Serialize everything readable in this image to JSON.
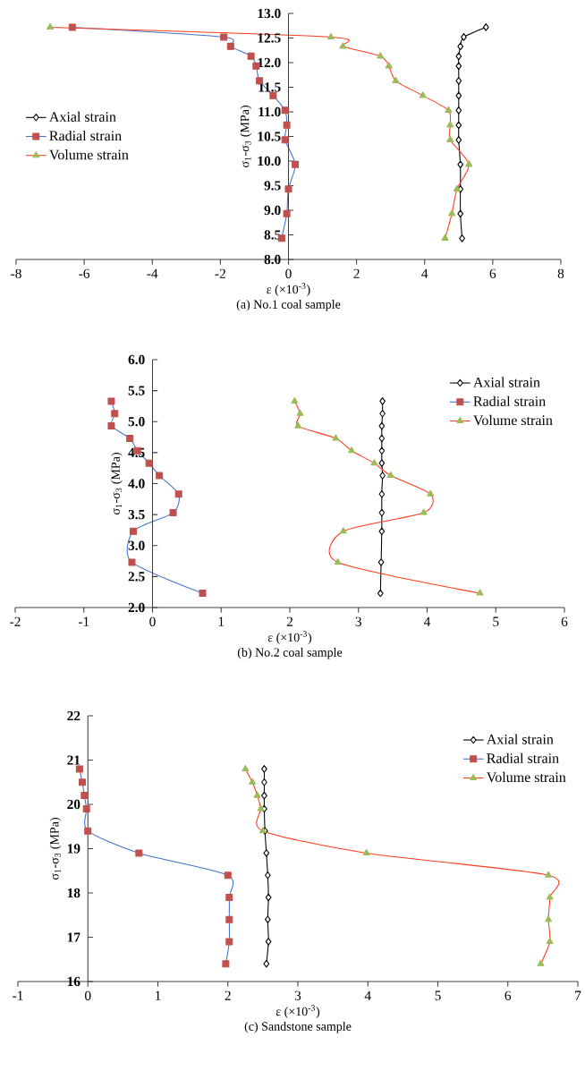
{
  "chart_data": [
    {
      "type": "line",
      "title": "(a)  No.1  coal  sample",
      "xlabel": "ε (×10$^{-3}$)",
      "ylabel": "σ$_{1}$-σ$_{3}$ (MPa)",
      "xlim": [
        -8,
        8
      ],
      "xticks": [
        -8,
        -6,
        -4,
        -2,
        0,
        2,
        4,
        6,
        8
      ],
      "ylim": [
        8,
        13
      ],
      "yticks": [
        {
          "value": 8,
          "label": "8.0"
        },
        {
          "value": 8.5,
          "label": "8.5"
        },
        {
          "value": 9,
          "label": "9.0"
        },
        {
          "value": 9.5,
          "label": "9.5"
        },
        {
          "value": 10,
          "label": "10.0"
        },
        {
          "value": 10.5,
          "label": "10.5"
        },
        {
          "value": 11,
          "label": "11.0"
        },
        {
          "value": 11.5,
          "label": "11.5"
        },
        {
          "value": 12,
          "label": "12.0"
        },
        {
          "value": 12.5,
          "label": "12.5"
        },
        {
          "value": 13,
          "label": "13.0"
        }
      ],
      "legend": "left",
      "series": [
        {
          "name": "Axial strain",
          "color": "#000000",
          "marker": "diamond",
          "x": [
            5.8,
            5.15,
            5.05,
            5.0,
            5.0,
            5.0,
            5.0,
            5.0,
            5.0,
            5.0,
            5.05,
            5.05,
            5.05,
            5.1
          ],
          "values": [
            12.72,
            12.52,
            12.33,
            12.13,
            11.93,
            11.63,
            11.33,
            11.03,
            10.73,
            10.43,
            9.93,
            9.43,
            8.93,
            8.43
          ]
        },
        {
          "name": "Radial strain",
          "color": "#4472c4",
          "marker": "square",
          "x": [
            -6.35,
            -1.9,
            -1.7,
            -1.1,
            -0.95,
            -0.85,
            -0.45,
            -0.1,
            -0.05,
            -0.1,
            0.2,
            0.0,
            -0.05,
            -0.2
          ],
          "values": [
            12.72,
            12.52,
            12.33,
            12.13,
            11.93,
            11.63,
            11.33,
            11.03,
            10.73,
            10.43,
            9.93,
            9.43,
            8.93,
            8.43
          ]
        },
        {
          "name": "Volume strain",
          "color": "#ff3c1e",
          "marker": "triangle",
          "x": [
            -7.0,
            1.25,
            1.6,
            2.7,
            2.95,
            3.15,
            3.95,
            4.7,
            4.75,
            4.75,
            5.3,
            4.95,
            4.8,
            4.6
          ],
          "values": [
            12.72,
            12.52,
            12.33,
            12.13,
            11.93,
            11.63,
            11.33,
            11.03,
            10.73,
            10.43,
            9.93,
            9.43,
            8.93,
            8.43
          ]
        }
      ]
    },
    {
      "type": "line",
      "title": "(b)  No.2  coal  sample",
      "xlabel": "ε (×10$^{-3}$)",
      "ylabel": "σ$_{1}$-σ$_{3}$ (MPa)",
      "xlim": [
        -2,
        6
      ],
      "xticks": [
        -2,
        -1,
        0,
        1,
        2,
        3,
        4,
        5,
        6
      ],
      "ylim": [
        2,
        6
      ],
      "yticks": [
        {
          "value": 2,
          "label": "2.0"
        },
        {
          "value": 2.5,
          "label": "2.5"
        },
        {
          "value": 3,
          "label": "3.0"
        },
        {
          "value": 3.5,
          "label": "3.5"
        },
        {
          "value": 4,
          "label": "4.0"
        },
        {
          "value": 4.5,
          "label": "4.5"
        },
        {
          "value": 5,
          "label": "5.0"
        },
        {
          "value": 5.5,
          "label": "5.5"
        },
        {
          "value": 6,
          "label": "6.0"
        }
      ],
      "legend": "top right",
      "series": [
        {
          "name": "Axial strain",
          "color": "#000000",
          "marker": "diamond",
          "x": [
            3.35,
            3.35,
            3.34,
            3.34,
            3.34,
            3.34,
            3.35,
            3.34,
            3.34,
            3.34,
            3.33,
            3.32
          ],
          "values": [
            5.33,
            5.13,
            4.93,
            4.73,
            4.53,
            4.33,
            4.13,
            3.83,
            3.53,
            3.23,
            2.73,
            2.23
          ]
        },
        {
          "name": "Radial strain",
          "color": "#4472c4",
          "marker": "square",
          "x": [
            -0.6,
            -0.55,
            -0.6,
            -0.33,
            -0.22,
            -0.05,
            0.1,
            0.38,
            0.3,
            -0.28,
            -0.3,
            0.73
          ],
          "values": [
            5.33,
            5.13,
            4.93,
            4.73,
            4.53,
            4.33,
            4.13,
            3.83,
            3.53,
            3.23,
            2.73,
            2.23
          ]
        },
        {
          "name": "Volume strain",
          "color": "#ff3c1e",
          "marker": "triangle",
          "x": [
            2.07,
            2.15,
            2.12,
            2.67,
            2.9,
            3.23,
            3.47,
            4.05,
            3.95,
            2.78,
            2.7,
            4.77
          ],
          "values": [
            5.33,
            5.13,
            4.93,
            4.73,
            4.53,
            4.33,
            4.13,
            3.83,
            3.53,
            3.23,
            2.73,
            2.23
          ]
        }
      ]
    },
    {
      "type": "line",
      "title": "(c)  Sandstone  sample",
      "xlabel": "ε (×10$^{-3}$)",
      "ylabel": "σ$_{1}$-σ$_{3}$ (MPa)",
      "xlim": [
        -1,
        7
      ],
      "xticks": [
        -1,
        0,
        1,
        2,
        3,
        4,
        5,
        6,
        7
      ],
      "ylim": [
        16,
        22
      ],
      "yticks": [
        16,
        17,
        18,
        19,
        20,
        21,
        22
      ],
      "legend": "top right",
      "series": [
        {
          "name": "Axial strain",
          "color": "#000000",
          "marker": "diamond",
          "x": [
            2.52,
            2.52,
            2.52,
            2.52,
            2.53,
            2.55,
            2.57,
            2.58,
            2.57,
            2.58,
            2.55
          ],
          "values": [
            20.8,
            20.5,
            20.2,
            19.9,
            19.4,
            18.9,
            18.4,
            17.9,
            17.4,
            16.9,
            16.4
          ]
        },
        {
          "name": "Radial strain",
          "color": "#4472c4",
          "marker": "square",
          "x": [
            -0.12,
            -0.08,
            -0.05,
            -0.02,
            0.0,
            0.73,
            2.0,
            2.02,
            2.02,
            2.02,
            1.97
          ],
          "values": [
            20.8,
            20.5,
            20.2,
            19.9,
            19.4,
            18.9,
            18.4,
            17.9,
            17.4,
            16.9,
            16.4
          ]
        },
        {
          "name": "Volume strain",
          "color": "#ff3c1e",
          "marker": "triangle",
          "x": [
            2.25,
            2.35,
            2.42,
            2.47,
            2.5,
            3.98,
            6.58,
            6.6,
            6.58,
            6.6,
            6.47
          ],
          "values": [
            20.8,
            20.5,
            20.2,
            19.9,
            19.4,
            18.9,
            18.4,
            17.9,
            17.4,
            16.9,
            16.4
          ]
        }
      ]
    }
  ]
}
